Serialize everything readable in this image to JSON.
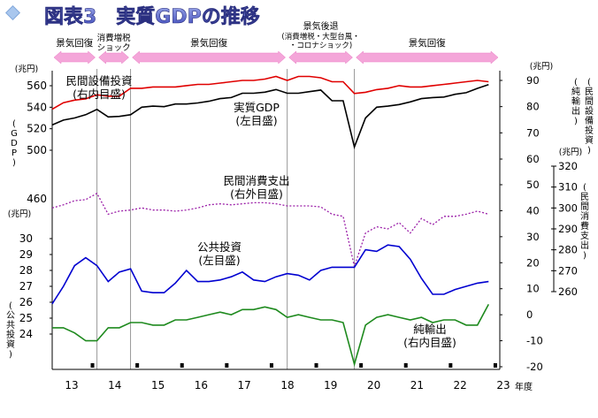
{
  "header": {
    "title": "図表3　実質GDPの推移"
  },
  "chart_data": {
    "type": "line",
    "title": "図表3　実質GDPの推移",
    "x_unit": "年度",
    "x_ticks": [
      "13",
      "14",
      "15",
      "16",
      "17",
      "18",
      "19",
      "20",
      "21",
      "22",
      "23"
    ],
    "period_bands": [
      {
        "label": "景気回復",
        "x_start": 2001.0,
        "x_end": 2002.0,
        "arrow": "both"
      },
      {
        "label": "消費増税ショック",
        "x_start": 2002.0,
        "x_end": 2002.75,
        "arrow": "both"
      },
      {
        "label": "景気回復",
        "x_start": 2002.75,
        "x_end": 2006.25,
        "arrow": "both"
      },
      {
        "label": "景気後退 (消費増税・大型台風・コロナショック)",
        "x_start": 2006.25,
        "x_end": 2007.75,
        "arrow": "both"
      },
      {
        "label": "景気回復",
        "x_start": 2007.75,
        "x_end": 2011.0,
        "arrow": "both"
      }
    ],
    "vertical_lines": [
      2002.0,
      2002.75,
      2006.25,
      2007.75
    ],
    "axes": {
      "left_gdp": {
        "label": "(GDP)",
        "unit": "(兆円)",
        "min": 500,
        "max": 560,
        "ticks": [
          500,
          520,
          540,
          560
        ]
      },
      "right_equipment": {
        "label": "(民間設備投資)",
        "unit": "(兆円)",
        "min": 60,
        "max": 90,
        "ticks": [
          60,
          70,
          80,
          90
        ]
      },
      "right_outer_consumption": {
        "label": "(民間消費支出)",
        "unit": "(兆円)",
        "min": 260,
        "max": 320,
        "ticks": [
          260,
          270,
          280,
          290,
          300,
          310,
          320
        ]
      },
      "left_consumption_stub": {
        "ticks": [
          460
        ]
      },
      "left_public": {
        "label": "(公共投資)",
        "unit": "(兆円)",
        "min": 24,
        "max": 30,
        "ticks": [
          24,
          25,
          26,
          27,
          28,
          29,
          30
        ]
      },
      "right_net_exports": {
        "label": "(純輸出)",
        "min": -20,
        "max": 50,
        "ticks": [
          -20,
          -10,
          0,
          10,
          20,
          30,
          40,
          50
        ]
      }
    },
    "series": [
      {
        "name": "実質GDP",
        "axis_note": "(左目盛)",
        "color": "#000000",
        "x": [
          2001.0,
          2001.25,
          2001.5,
          2001.75,
          2002.0,
          2002.25,
          2002.5,
          2002.75,
          2003.0,
          2003.25,
          2003.5,
          2003.75,
          2004.0,
          2004.25,
          2004.5,
          2004.75,
          2005.0,
          2005.25,
          2005.5,
          2005.75,
          2006.0,
          2006.25,
          2006.5,
          2006.75,
          2007.0,
          2007.25,
          2007.5,
          2007.75,
          2008.0,
          2008.25,
          2008.5,
          2008.75,
          2009.0,
          2009.25,
          2009.5,
          2009.75,
          2010.0,
          2010.25,
          2010.5,
          2010.75
        ],
        "values": [
          523.5,
          528,
          530,
          533,
          538,
          531,
          531.5,
          533,
          540,
          541,
          540.5,
          543,
          543,
          544,
          545.5,
          548,
          549,
          553,
          553,
          554,
          556.5,
          553,
          553,
          554.5,
          556,
          546,
          546,
          503,
          530,
          540,
          541,
          542.5,
          545,
          548,
          549,
          549.5,
          552,
          553.5,
          557.5,
          561
        ]
      },
      {
        "name": "民間設備投資",
        "axis_note": "(右内目盛)",
        "color": "#e00000",
        "x": [
          2001.0,
          2001.25,
          2001.5,
          2001.75,
          2002.0,
          2002.25,
          2002.5,
          2002.75,
          2003.0,
          2003.25,
          2003.5,
          2003.75,
          2004.0,
          2004.25,
          2004.5,
          2004.75,
          2005.0,
          2005.25,
          2005.5,
          2005.75,
          2006.0,
          2006.25,
          2006.5,
          2006.75,
          2007.0,
          2007.25,
          2007.5,
          2007.75,
          2008.0,
          2008.25,
          2008.5,
          2008.75,
          2009.0,
          2009.25,
          2009.5,
          2009.75,
          2010.0,
          2010.25,
          2010.5,
          2010.75
        ],
        "values": [
          79,
          81.5,
          82.5,
          83,
          84.5,
          84,
          84,
          87,
          87,
          87.5,
          87.5,
          87.5,
          88,
          88.5,
          88.5,
          89,
          89.5,
          90,
          90,
          90.5,
          91.5,
          90,
          91.5,
          91.5,
          91,
          89.5,
          89.5,
          85,
          85.5,
          86.5,
          87,
          88,
          87.5,
          87.5,
          88,
          88.5,
          89,
          89.5,
          90,
          89.5
        ]
      },
      {
        "name": "民間消費支出",
        "axis_note": "(右外目盛)",
        "color": "#9b1fa8",
        "dashed": true,
        "x": [
          2001.0,
          2001.25,
          2001.5,
          2001.75,
          2002.0,
          2002.25,
          2002.5,
          2002.75,
          2003.0,
          2003.25,
          2003.5,
          2003.75,
          2004.0,
          2004.25,
          2004.5,
          2004.75,
          2005.0,
          2005.25,
          2005.5,
          2005.75,
          2006.0,
          2006.25,
          2006.5,
          2006.75,
          2007.0,
          2007.25,
          2007.5,
          2007.75,
          2008.0,
          2008.25,
          2008.5,
          2008.75,
          2009.0,
          2009.25,
          2009.5,
          2009.75,
          2010.0,
          2010.25,
          2010.5,
          2010.75
        ],
        "values": [
          300,
          301.5,
          303.5,
          304,
          307,
          297,
          298.5,
          299,
          300,
          299,
          299,
          298.5,
          299,
          300,
          301.5,
          302,
          301.5,
          302,
          302.5,
          302.5,
          302,
          301,
          301,
          301,
          300.5,
          297,
          296,
          272,
          288,
          291,
          290,
          293,
          288,
          295,
          292,
          296,
          296,
          297,
          298.5,
          297
        ]
      },
      {
        "name": "公共投資",
        "axis_note": "(左目盛)",
        "color": "#0000d0",
        "x": [
          2001.0,
          2001.25,
          2001.5,
          2001.75,
          2002.0,
          2002.25,
          2002.5,
          2002.75,
          2003.0,
          2003.25,
          2003.5,
          2003.75,
          2004.0,
          2004.25,
          2004.5,
          2004.75,
          2005.0,
          2005.25,
          2005.5,
          2005.75,
          2006.0,
          2006.25,
          2006.5,
          2006.75,
          2007.0,
          2007.25,
          2007.5,
          2007.75,
          2008.0,
          2008.25,
          2008.5,
          2008.75,
          2009.0,
          2009.25,
          2009.5,
          2009.75,
          2010.0,
          2010.25,
          2010.5,
          2010.75
        ],
        "values": [
          25.9,
          27,
          28.3,
          28.8,
          28.3,
          27.3,
          27.9,
          28.1,
          26.7,
          26.6,
          26.6,
          27.2,
          28,
          27.3,
          27.3,
          27.4,
          27.6,
          27.9,
          27.4,
          27.3,
          27.6,
          27.8,
          27.7,
          27.4,
          28,
          28.2,
          28.2,
          28.2,
          29.3,
          29.2,
          29.6,
          29.5,
          28.7,
          27.5,
          26.5,
          26.5,
          26.8,
          27,
          27.2,
          27.3
        ]
      },
      {
        "name": "純輸出",
        "axis_note": "(右内目盛)",
        "color": "#1e8a1e",
        "x": [
          2001.0,
          2001.25,
          2001.5,
          2001.75,
          2002.0,
          2002.25,
          2002.5,
          2002.75,
          2003.0,
          2003.25,
          2003.5,
          2003.75,
          2004.0,
          2004.25,
          2004.5,
          2004.75,
          2005.0,
          2005.25,
          2005.5,
          2005.75,
          2006.0,
          2006.25,
          2006.5,
          2006.75,
          2007.0,
          2007.25,
          2007.5,
          2007.75,
          2008.0,
          2008.25,
          2008.5,
          2008.75,
          2009.0,
          2009.25,
          2009.5,
          2009.75,
          2010.0,
          2010.25,
          2010.5,
          2010.75
        ],
        "values": [
          -5,
          -5,
          -7,
          -10,
          -10,
          -5,
          -5,
          -3,
          -3,
          -4,
          -4,
          -2,
          -2,
          -1,
          0,
          1,
          0,
          2,
          2,
          3,
          2,
          -1,
          0,
          -1,
          -2,
          -2,
          -3,
          -19,
          -4,
          -1,
          0,
          -1,
          -2,
          -1,
          -3,
          -2,
          -2,
          -4,
          -4,
          4
        ]
      }
    ]
  }
}
